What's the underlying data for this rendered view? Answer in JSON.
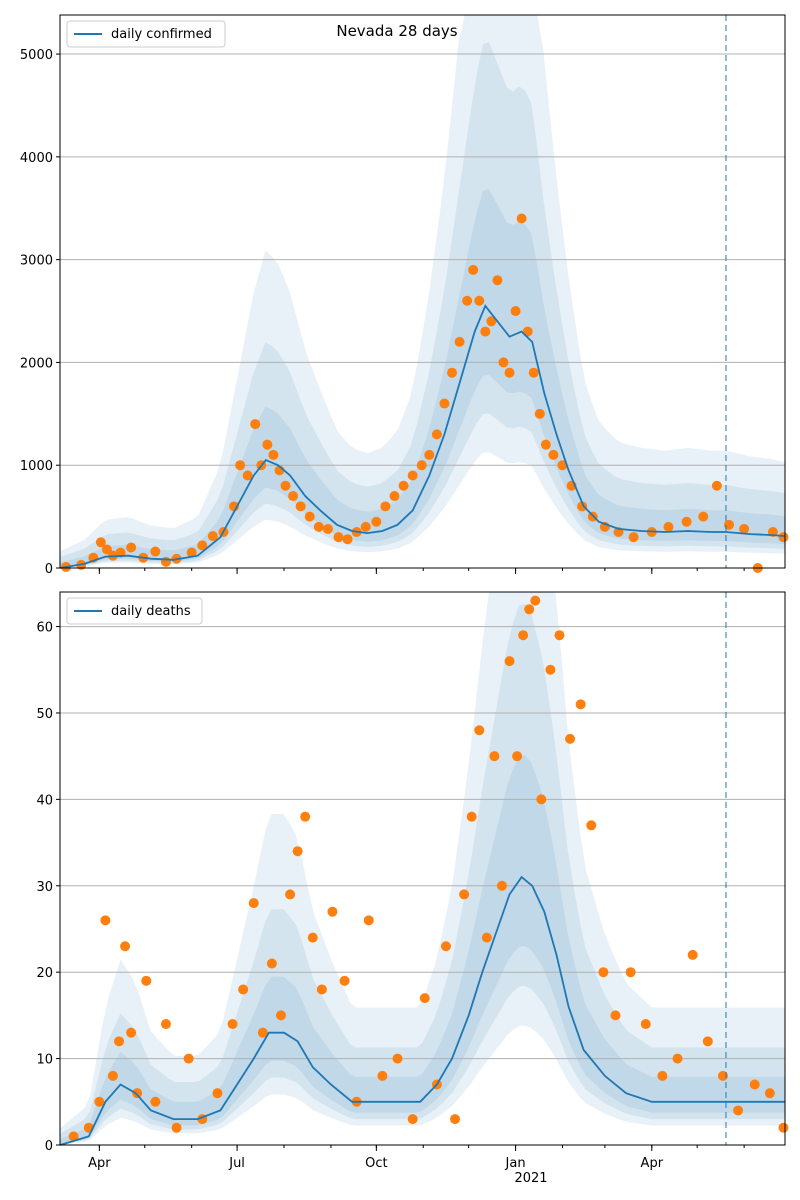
{
  "chart_data": [
    {
      "type": "line",
      "title": "Nevada 28 days",
      "legend": {
        "entries": [
          "daily confirmed"
        ],
        "placement": "top-left"
      },
      "ylim": [
        0,
        5380
      ],
      "yticks": [
        "0",
        "1000",
        "2000",
        "3000",
        "4000",
        "5000"
      ],
      "xticks": [
        "Apr",
        "Jul",
        "Oct",
        "Jan",
        "Apr"
      ],
      "xtick_year": "2021",
      "grid": "horizontal",
      "forecast_start": "2021-05-20",
      "x_range": [
        "2020-03-06",
        "2021-06-28"
      ],
      "series": [
        {
          "name": "daily confirmed",
          "color": "#1f77b4",
          "x": [
            "2020-03-06",
            "2020-03-22",
            "2020-04-05",
            "2020-04-20",
            "2020-05-05",
            "2020-05-20",
            "2020-06-05",
            "2020-06-20",
            "2020-07-01",
            "2020-07-12",
            "2020-07-20",
            "2020-07-28",
            "2020-08-05",
            "2020-08-15",
            "2020-08-25",
            "2020-09-05",
            "2020-09-15",
            "2020-09-25",
            "2020-10-05",
            "2020-10-15",
            "2020-10-25",
            "2020-11-05",
            "2020-11-15",
            "2020-11-25",
            "2020-12-05",
            "2020-12-12",
            "2020-12-20",
            "2020-12-28",
            "2021-01-05",
            "2021-01-12",
            "2021-01-20",
            "2021-01-28",
            "2021-02-05",
            "2021-02-15",
            "2021-02-25",
            "2021-03-10",
            "2021-03-25",
            "2021-04-10",
            "2021-04-25",
            "2021-05-10",
            "2021-05-20",
            "2021-06-05",
            "2021-06-20",
            "2021-06-28"
          ],
          "y": [
            0,
            40,
            110,
            120,
            90,
            80,
            120,
            300,
            600,
            900,
            1050,
            1000,
            900,
            700,
            560,
            420,
            360,
            340,
            360,
            420,
            560,
            900,
            1300,
            1800,
            2300,
            2550,
            2400,
            2250,
            2300,
            2200,
            1700,
            1300,
            950,
            600,
            450,
            380,
            360,
            350,
            360,
            350,
            350,
            330,
            320,
            310
          ]
        }
      ],
      "observed_points": {
        "color": "#ff7f0e",
        "x": [
          "2020-03-10",
          "2020-03-20",
          "2020-03-28",
          "2020-04-02",
          "2020-04-06",
          "2020-04-10",
          "2020-04-15",
          "2020-04-22",
          "2020-04-30",
          "2020-05-08",
          "2020-05-15",
          "2020-05-22",
          "2020-06-01",
          "2020-06-08",
          "2020-06-15",
          "2020-06-22",
          "2020-06-29",
          "2020-07-03",
          "2020-07-08",
          "2020-07-13",
          "2020-07-17",
          "2020-07-21",
          "2020-07-25",
          "2020-07-29",
          "2020-08-02",
          "2020-08-07",
          "2020-08-12",
          "2020-08-18",
          "2020-08-24",
          "2020-08-30",
          "2020-09-06",
          "2020-09-12",
          "2020-09-18",
          "2020-09-24",
          "2020-10-01",
          "2020-10-07",
          "2020-10-13",
          "2020-10-19",
          "2020-10-25",
          "2020-10-31",
          "2020-11-05",
          "2020-11-10",
          "2020-11-15",
          "2020-11-20",
          "2020-11-25",
          "2020-11-30",
          "2020-12-04",
          "2020-12-08",
          "2020-12-12",
          "2020-12-16",
          "2020-12-20",
          "2020-12-24",
          "2020-12-28",
          "2021-01-01",
          "2021-01-05",
          "2021-01-09",
          "2021-01-13",
          "2021-01-17",
          "2021-01-21",
          "2021-01-26",
          "2021-02-01",
          "2021-02-07",
          "2021-02-14",
          "2021-02-21",
          "2021-03-01",
          "2021-03-10",
          "2021-03-20",
          "2021-04-01",
          "2021-04-12",
          "2021-04-24",
          "2021-05-05",
          "2021-05-14",
          "2021-05-22",
          "2021-06-01",
          "2021-06-10",
          "2021-06-20",
          "2021-06-27"
        ],
        "y": [
          10,
          30,
          100,
          250,
          180,
          120,
          150,
          200,
          100,
          160,
          60,
          90,
          150,
          220,
          310,
          350,
          600,
          1000,
          900,
          1400,
          1000,
          1200,
          1100,
          950,
          800,
          700,
          600,
          500,
          400,
          380,
          300,
          280,
          350,
          400,
          450,
          600,
          700,
          800,
          900,
          1000,
          1100,
          1300,
          1600,
          1900,
          2200,
          2600,
          2900,
          2600,
          2300,
          2400,
          2800,
          2000,
          1900,
          2500,
          3400,
          2300,
          1900,
          1500,
          1200,
          1100,
          1000,
          800,
          600,
          500,
          400,
          350,
          300,
          350,
          400,
          450,
          500,
          800,
          420,
          380,
          0,
          350,
          300
        ]
      }
    },
    {
      "type": "line",
      "legend": {
        "entries": [
          "daily deaths"
        ],
        "placement": "top-left"
      },
      "ylim": [
        0,
        64
      ],
      "yticks": [
        "0",
        "10",
        "20",
        "30",
        "40",
        "50",
        "60"
      ],
      "xticks": [
        "Apr",
        "Jul",
        "Oct",
        "Jan",
        "Apr"
      ],
      "xtick_year": "2021",
      "grid": "horizontal",
      "forecast_start": "2021-05-20",
      "x_range": [
        "2020-03-06",
        "2021-06-28"
      ],
      "series": [
        {
          "name": "daily deaths",
          "color": "#1f77b4",
          "x": [
            "2020-03-06",
            "2020-03-25",
            "2020-04-05",
            "2020-04-15",
            "2020-04-25",
            "2020-05-05",
            "2020-05-20",
            "2020-06-05",
            "2020-06-20",
            "2020-07-01",
            "2020-07-12",
            "2020-07-22",
            "2020-08-01",
            "2020-08-10",
            "2020-08-20",
            "2020-09-01",
            "2020-09-15",
            "2020-10-01",
            "2020-10-15",
            "2020-10-30",
            "2020-11-10",
            "2020-11-20",
            "2020-12-01",
            "2020-12-10",
            "2020-12-20",
            "2020-12-28",
            "2021-01-05",
            "2021-01-12",
            "2021-01-20",
            "2021-01-28",
            "2021-02-05",
            "2021-02-15",
            "2021-03-01",
            "2021-03-15",
            "2021-04-01",
            "2021-04-15",
            "2021-05-01",
            "2021-05-20",
            "2021-06-10",
            "2021-06-28"
          ],
          "y": [
            0,
            1,
            5,
            7,
            6,
            4,
            3,
            3,
            4,
            7,
            10,
            13,
            13,
            12,
            9,
            7,
            5,
            5,
            5,
            5,
            7,
            10,
            15,
            20,
            25,
            29,
            31,
            30,
            27,
            22,
            16,
            11,
            8,
            6,
            5,
            5,
            5,
            5,
            5,
            5
          ]
        }
      ],
      "observed_points": {
        "color": "#ff7f0e",
        "x": [
          "2020-03-15",
          "2020-03-25",
          "2020-04-01",
          "2020-04-05",
          "2020-04-10",
          "2020-04-14",
          "2020-04-18",
          "2020-04-22",
          "2020-04-26",
          "2020-05-02",
          "2020-05-08",
          "2020-05-15",
          "2020-05-22",
          "2020-05-30",
          "2020-06-08",
          "2020-06-18",
          "2020-06-28",
          "2020-07-05",
          "2020-07-12",
          "2020-07-18",
          "2020-07-24",
          "2020-07-30",
          "2020-08-05",
          "2020-08-10",
          "2020-08-15",
          "2020-08-20",
          "2020-08-26",
          "2020-09-02",
          "2020-09-10",
          "2020-09-18",
          "2020-09-26",
          "2020-10-05",
          "2020-10-15",
          "2020-10-25",
          "2020-11-02",
          "2020-11-10",
          "2020-11-16",
          "2020-11-22",
          "2020-11-28",
          "2020-12-03",
          "2020-12-08",
          "2020-12-13",
          "2020-12-18",
          "2020-12-23",
          "2020-12-28",
          "2021-01-02",
          "2021-01-06",
          "2021-01-10",
          "2021-01-14",
          "2021-01-18",
          "2021-01-24",
          "2021-01-30",
          "2021-02-06",
          "2021-02-13",
          "2021-02-20",
          "2021-02-28",
          "2021-03-08",
          "2021-03-18",
          "2021-03-28",
          "2021-04-08",
          "2021-04-18",
          "2021-04-28",
          "2021-05-08",
          "2021-05-18",
          "2021-05-28",
          "2021-06-08",
          "2021-06-18",
          "2021-06-27"
        ],
        "y": [
          1,
          2,
          5,
          26,
          8,
          12,
          23,
          13,
          6,
          19,
          5,
          14,
          2,
          10,
          3,
          6,
          14,
          18,
          28,
          13,
          21,
          15,
          29,
          34,
          38,
          24,
          18,
          27,
          19,
          5,
          26,
          8,
          10,
          3,
          17,
          7,
          23,
          3,
          29,
          38,
          48,
          24,
          45,
          30,
          56,
          45,
          59,
          62,
          63,
          40,
          55,
          59,
          47,
          51,
          37,
          20,
          15,
          20,
          14,
          8,
          10,
          22,
          12,
          8,
          4,
          7,
          6,
          2
        ]
      }
    }
  ]
}
